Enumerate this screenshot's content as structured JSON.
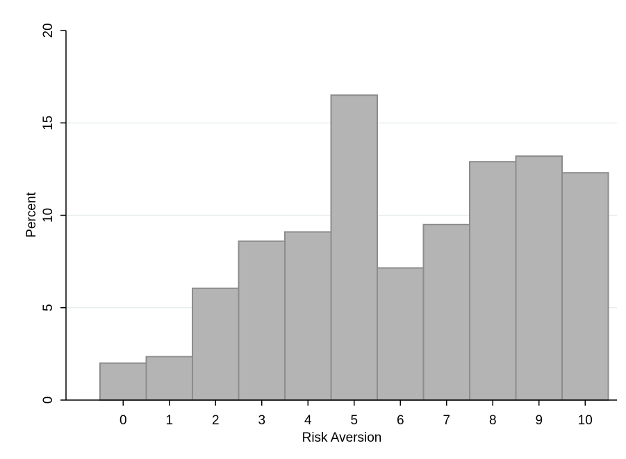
{
  "chart_data": {
    "type": "bar",
    "categories": [
      "0",
      "1",
      "2",
      "3",
      "4",
      "5",
      "6",
      "7",
      "8",
      "9",
      "10"
    ],
    "values": [
      2.0,
      2.35,
      6.05,
      8.6,
      9.1,
      16.5,
      7.15,
      9.5,
      12.9,
      13.2,
      12.3
    ],
    "title": "",
    "xlabel": "Risk Aversion",
    "ylabel": "Percent",
    "ylim": [
      0,
      20
    ],
    "yticks": [
      0,
      5,
      10,
      15,
      20
    ],
    "grid": true,
    "colors": {
      "bar_fill": "#b4b4b4",
      "bar_stroke": "#8c8c8c",
      "grid": "#e4ecec",
      "axis": "#000000"
    }
  }
}
